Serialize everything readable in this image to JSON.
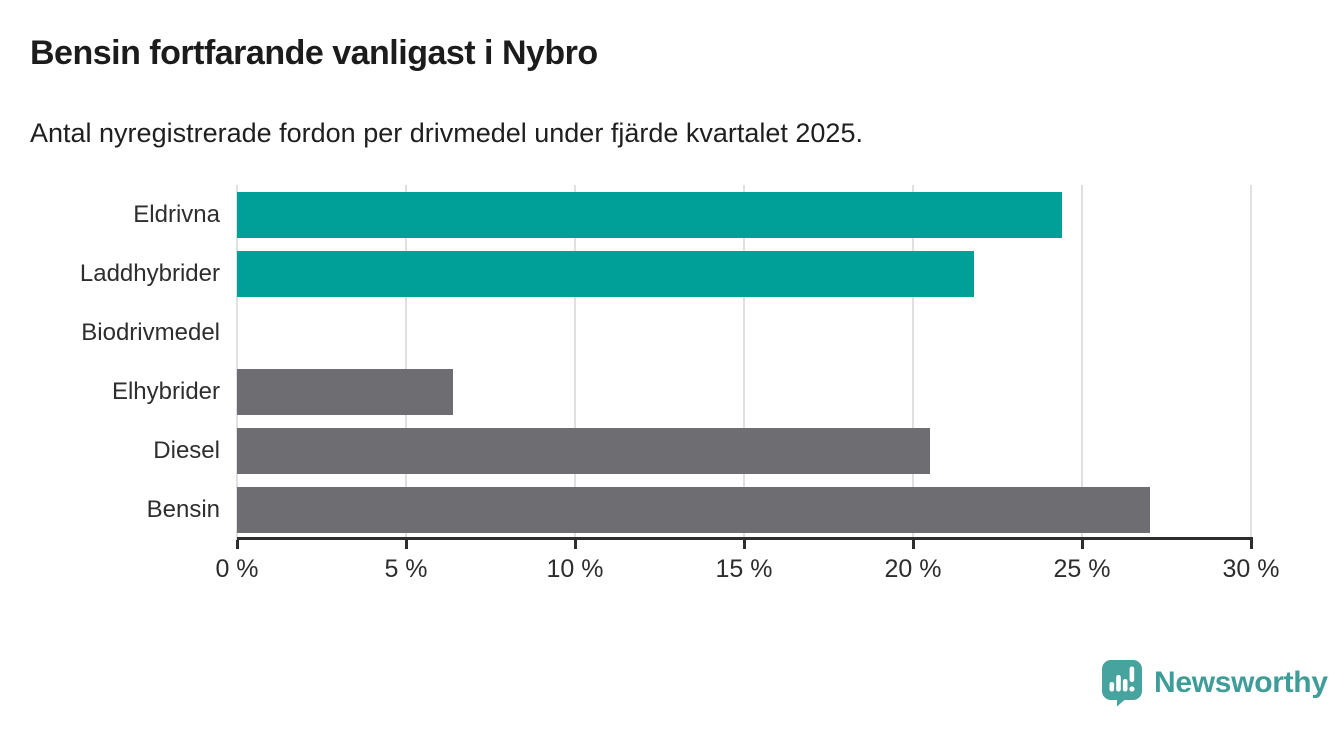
{
  "chart_data": {
    "type": "bar",
    "orientation": "horizontal",
    "title": "Bensin fortfarande vanligast i Nybro",
    "subtitle": "Antal nyregistrerade fordon per drivmedel under fjärde kvartalet 2025.",
    "categories": [
      "Eldrivna",
      "Laddhybrider",
      "Biodrivmedel",
      "Elhybrider",
      "Diesel",
      "Bensin"
    ],
    "values": [
      24.4,
      21.8,
      0,
      6.4,
      20.5,
      27.0
    ],
    "bar_colors": [
      "#00a099",
      "#00a099",
      "#6d6d72",
      "#6d6d72",
      "#6d6d72",
      "#6d6d72"
    ],
    "xlabel": "",
    "ylabel": "",
    "xlim": [
      0,
      30
    ],
    "x_tick_values": [
      0,
      5,
      10,
      15,
      20,
      25,
      30
    ],
    "x_tick_labels": [
      "0 %",
      "5 %",
      "10 %",
      "15 %",
      "20 %",
      "25 %",
      "30 %"
    ],
    "grid": "vertical-on",
    "legend": "none"
  },
  "colors": {
    "accent_teal": "#00a099",
    "neutral_gray": "#6d6d72",
    "gridline": "#e0e0e0",
    "axis": "#2d2d2d",
    "text": "#1c1c1c",
    "logo_teal": "#47a39d",
    "logo_text_teal": "#3f9d99"
  },
  "footer": {
    "brand": "Newsworthy"
  }
}
